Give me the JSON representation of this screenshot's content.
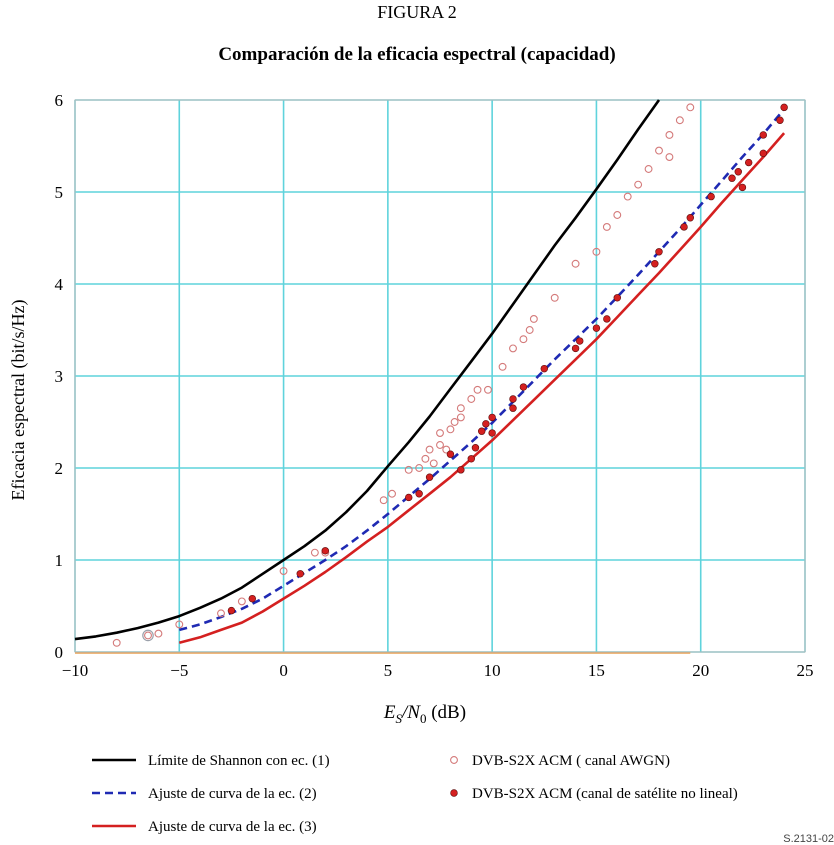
{
  "figure_label": "FIGURA 2",
  "chart_data": {
    "type": "line",
    "title": "Comparación de la eficacia espectral (capacidad)",
    "xlabel_parts": {
      "e": "E",
      "s": "S",
      "slash": "/N",
      "zero": "0",
      "unit": " (dB)"
    },
    "ylabel": "Eficacia espectral (bit/s/Hz)",
    "xlim": [
      -10,
      25
    ],
    "ylim": [
      0,
      6
    ],
    "x_ticks": [
      -10,
      -5,
      0,
      5,
      10,
      15,
      20,
      25
    ],
    "x_tick_labels": [
      "−10",
      "−5",
      "0",
      "5",
      "10",
      "15",
      "20",
      "25"
    ],
    "y_ticks": [
      0,
      1,
      2,
      3,
      4,
      5,
      6
    ],
    "y_tick_labels": [
      "0",
      "1",
      "2",
      "3",
      "4",
      "5",
      "6"
    ],
    "grid": true,
    "series": [
      {
        "name": "Límite de Shannon con ec. (1)",
        "style": "line",
        "color": "#000000",
        "dash": "",
        "x": [
          -10,
          -9,
          -8,
          -7,
          -6,
          -5,
          -4,
          -3,
          -2,
          -1,
          0,
          1,
          2,
          3,
          4,
          5,
          6,
          7,
          8,
          9,
          10,
          11,
          12,
          13,
          14,
          15,
          16,
          17,
          18
        ],
        "y": [
          0.14,
          0.17,
          0.21,
          0.26,
          0.32,
          0.39,
          0.48,
          0.58,
          0.7,
          0.85,
          1.0,
          1.15,
          1.32,
          1.52,
          1.75,
          2.02,
          2.28,
          2.56,
          2.86,
          3.16,
          3.46,
          3.78,
          4.1,
          4.42,
          4.72,
          5.03,
          5.35,
          5.68,
          6.0
        ]
      },
      {
        "name": "Ajuste de curva de la ec. (2)",
        "style": "line",
        "color": "#1f2ab3",
        "dash": "8,5",
        "x": [
          -5,
          -4,
          -3,
          -2,
          -1,
          0,
          1,
          2,
          3,
          4,
          5,
          6,
          7,
          8,
          9,
          10,
          11,
          12,
          13,
          14,
          15,
          16,
          17,
          18,
          19,
          20,
          21,
          22,
          23,
          24
        ],
        "y": [
          0.24,
          0.3,
          0.38,
          0.47,
          0.58,
          0.72,
          0.86,
          1.0,
          1.15,
          1.32,
          1.5,
          1.69,
          1.88,
          2.08,
          2.28,
          2.49,
          2.72,
          2.95,
          3.18,
          3.4,
          3.62,
          3.86,
          4.1,
          4.35,
          4.6,
          4.86,
          5.12,
          5.38,
          5.63,
          5.9
        ]
      },
      {
        "name": "Ajuste de curva de la ec. (3)",
        "style": "line",
        "color": "#d42020",
        "dash": "",
        "x": [
          -5,
          -4,
          -3,
          -2,
          -1,
          0,
          1,
          2,
          3,
          4,
          5,
          6,
          7,
          8,
          9,
          10,
          11,
          12,
          13,
          14,
          15,
          16,
          17,
          18,
          19,
          20,
          21,
          22,
          23,
          24
        ],
        "y": [
          0.1,
          0.16,
          0.24,
          0.32,
          0.44,
          0.58,
          0.72,
          0.87,
          1.03,
          1.2,
          1.36,
          1.54,
          1.72,
          1.9,
          2.1,
          2.3,
          2.52,
          2.74,
          2.96,
          3.18,
          3.4,
          3.64,
          3.88,
          4.12,
          4.37,
          4.62,
          4.88,
          5.13,
          5.38,
          5.64
        ]
      },
      {
        "name": "DVB-S2X ACM ( canal AWGN)",
        "style": "scatter_open",
        "color": "#d47a7a",
        "x": [
          -8.0,
          -6.5,
          -6.0,
          -5.0,
          -3.0,
          -2.0,
          0.0,
          1.5,
          2.0,
          4.8,
          5.2,
          6.0,
          6.5,
          6.8,
          7.0,
          7.2,
          7.5,
          7.5,
          7.8,
          8.0,
          8.2,
          8.5,
          8.5,
          9.0,
          9.3,
          9.8,
          10.5,
          11.0,
          11.5,
          11.8,
          12.0,
          13.0,
          14.0,
          15.0,
          15.5,
          16.0,
          16.5,
          17.0,
          17.5,
          18.0,
          18.5,
          18.5,
          19.0,
          19.5
        ],
        "y": [
          0.1,
          0.18,
          0.2,
          0.3,
          0.42,
          0.55,
          0.88,
          1.08,
          1.08,
          1.65,
          1.72,
          1.98,
          2.0,
          2.1,
          2.2,
          2.05,
          2.25,
          2.38,
          2.2,
          2.42,
          2.5,
          2.55,
          2.65,
          2.75,
          2.85,
          2.85,
          3.1,
          3.3,
          3.4,
          3.5,
          3.62,
          3.85,
          4.22,
          4.35,
          4.62,
          4.75,
          4.95,
          5.08,
          5.25,
          5.45,
          5.38,
          5.62,
          5.78,
          5.92
        ]
      },
      {
        "name": "DVB-S2X ACM (canal de satélite no lineal)",
        "style": "scatter_filled",
        "color": "#d42020",
        "x": [
          -2.5,
          -1.5,
          0.8,
          2.0,
          6.0,
          6.5,
          7.0,
          8.0,
          8.5,
          9.0,
          9.2,
          9.5,
          9.7,
          10.0,
          10.0,
          11.0,
          11.0,
          11.5,
          12.5,
          14.0,
          14.2,
          15.0,
          15.5,
          16.0,
          17.8,
          18.0,
          19.2,
          19.5,
          20.5,
          21.5,
          21.8,
          22.0,
          22.3,
          23.0,
          23.0,
          23.8,
          24.0
        ],
        "y": [
          0.45,
          0.58,
          0.85,
          1.1,
          1.68,
          1.72,
          1.9,
          2.15,
          1.98,
          2.1,
          2.22,
          2.4,
          2.48,
          2.38,
          2.55,
          2.65,
          2.75,
          2.88,
          3.08,
          3.3,
          3.38,
          3.52,
          3.62,
          3.85,
          4.22,
          4.35,
          4.62,
          4.72,
          4.95,
          5.15,
          5.22,
          5.05,
          5.32,
          5.42,
          5.62,
          5.78,
          5.92
        ]
      }
    ],
    "legend_position": "bottom"
  },
  "footer_code": "S.2131-02"
}
